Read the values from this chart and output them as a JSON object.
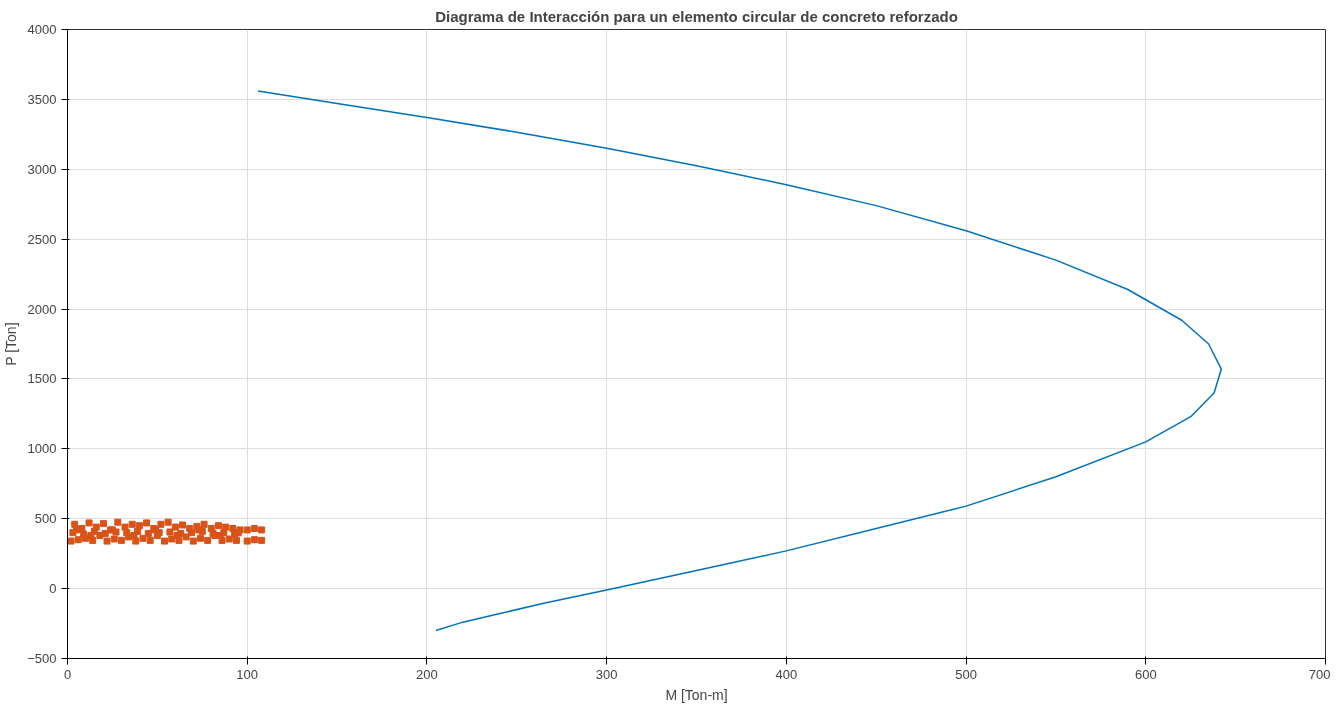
{
  "chart_data": {
    "type": "line",
    "title": "Diagrama de Interacción para un elemento circular de concreto reforzado",
    "xlabel": "M [Ton-m]",
    "ylabel": "P [Ton]",
    "xlim": [
      0,
      700
    ],
    "ylim": [
      -500,
      4000
    ],
    "xticks": [
      0,
      100,
      200,
      300,
      400,
      500,
      600,
      700
    ],
    "yticks": [
      -500,
      0,
      500,
      1000,
      1500,
      2000,
      2500,
      3000,
      3500,
      4000
    ],
    "grid": true,
    "series": [
      {
        "color": "#0072bd",
        "x": [
          106,
          150,
          200,
          250,
          300,
          350,
          400,
          450,
          500,
          550,
          590,
          620,
          635,
          642,
          638,
          625,
          600,
          550,
          500,
          450,
          400,
          350,
          300,
          265,
          240,
          220,
          205
        ],
        "values": [
          3560,
          3470,
          3370,
          3265,
          3150,
          3025,
          2890,
          2740,
          2560,
          2350,
          2140,
          1920,
          1750,
          1570,
          1400,
          1230,
          1050,
          800,
          590,
          430,
          270,
          130,
          -10,
          -105,
          -180,
          -240,
          -300
        ]
      },
      {
        "type": "scatter",
        "color": "#d95319",
        "marker": "square",
        "x": [
          2,
          4,
          6,
          8,
          10,
          12,
          14,
          16,
          18,
          20,
          22,
          24,
          26,
          28,
          30,
          32,
          34,
          36,
          38,
          40,
          42,
          44,
          46,
          48,
          50,
          52,
          54,
          56,
          58,
          60,
          62,
          64,
          66,
          68,
          70,
          72,
          74,
          76,
          78,
          80,
          82,
          84,
          86,
          88,
          90,
          92,
          94,
          96,
          100,
          104,
          108,
          3,
          9,
          15,
          21,
          27,
          33,
          39,
          45,
          51,
          57,
          63,
          69,
          75,
          81,
          87,
          93,
          5,
          13,
          25,
          37,
          49,
          61,
          73,
          85,
          95,
          100,
          104,
          108
        ],
        "values": [
          340,
          460,
          350,
          430,
          360,
          470,
          345,
          440,
          380,
          465,
          340,
          420,
          355,
          475,
          345,
          440,
          370,
          460,
          340,
          450,
          360,
          470,
          345,
          430,
          380,
          460,
          340,
          475,
          355,
          440,
          345,
          455,
          370,
          430,
          340,
          445,
          360,
          460,
          345,
          430,
          380,
          450,
          345,
          440,
          355,
          430,
          345,
          420,
          340,
          350,
          345,
          400,
          390,
          410,
          395,
          405,
          400,
          410,
          395,
          400,
          405,
          395,
          400,
          410,
          395,
          400,
          390,
          420,
          380,
          420,
          380,
          420,
          380,
          420,
          380,
          400,
          420,
          430,
          420
        ]
      }
    ]
  }
}
